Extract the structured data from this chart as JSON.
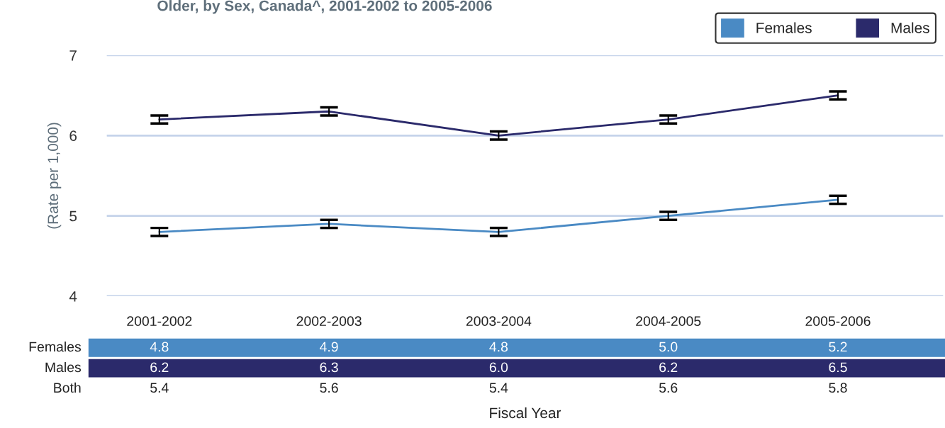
{
  "chart_data": {
    "type": "line",
    "title": "Older, by Sex, Canada^, 2001-2002 to 2005-2006",
    "annotations": [
      "Fiscal Year",
      "Both",
      "5.4",
      "5.6",
      "5.4",
      "5.6",
      "5.8"
    ],
    "ylabel": "(Rate per 1,000)",
    "categories": [
      "2001-2002",
      "2002-2003",
      "2003-2004",
      "2004-2005",
      "2005-2006"
    ],
    "series": [
      {
        "name": "Females",
        "color": "#4a8ac4",
        "values": [
          4.8,
          4.9,
          4.8,
          5.0,
          5.2
        ],
        "errors": [
          0.05,
          0.05,
          0.05,
          0.05,
          0.05
        ],
        "value_labels": [
          "4.8",
          "4.9",
          "4.8",
          "5.0",
          "5.2"
        ]
      },
      {
        "name": "Males",
        "color": "#2b2a6b",
        "values": [
          6.2,
          6.3,
          6.0,
          6.2,
          6.5
        ],
        "errors": [
          0.05,
          0.05,
          0.05,
          0.05,
          0.05
        ],
        "value_labels": [
          "6.2",
          "6.3",
          "6.0",
          "6.2",
          "6.5"
        ]
      }
    ],
    "ylim": [
      4,
      7
    ],
    "yticks": [
      4,
      5,
      6,
      7
    ],
    "grid": "y",
    "legend": "top right",
    "marker": "none",
    "line_style": "solid"
  }
}
